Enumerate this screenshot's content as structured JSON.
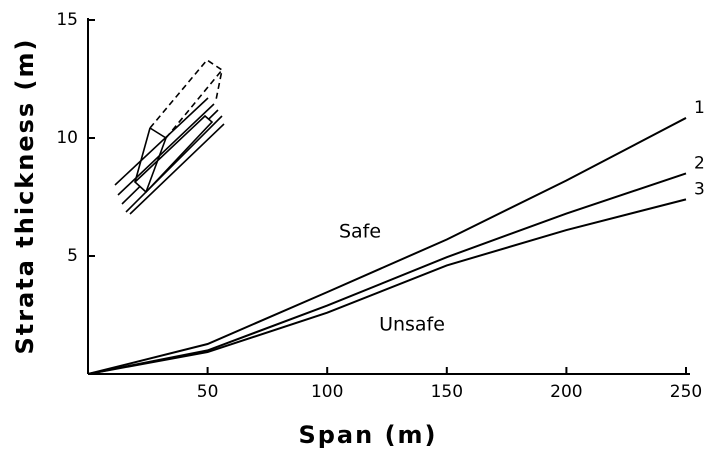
{
  "chart_data": {
    "type": "line",
    "x_label": "Span (m)",
    "y_label": "Strata thickness (m)",
    "x": [
      0,
      50,
      100,
      150,
      200,
      250
    ],
    "series": [
      {
        "name": "1",
        "color": "#000000",
        "values": [
          0,
          1.27,
          3.47,
          5.7,
          8.2,
          10.85
        ]
      },
      {
        "name": "2",
        "color": "#000000",
        "values": [
          0,
          1.0,
          2.9,
          4.95,
          6.8,
          8.5
        ]
      },
      {
        "name": "3",
        "color": "#000000",
        "values": [
          0,
          0.93,
          2.6,
          4.6,
          6.1,
          7.4
        ]
      }
    ],
    "annotations": [
      "Safe",
      "Unsafe"
    ],
    "xlim": [
      0,
      250
    ],
    "xticks": [
      50,
      100,
      150,
      200,
      250
    ],
    "ylim": [
      0,
      15
    ],
    "yticks": [
      5,
      10,
      15
    ],
    "grid": false
  }
}
